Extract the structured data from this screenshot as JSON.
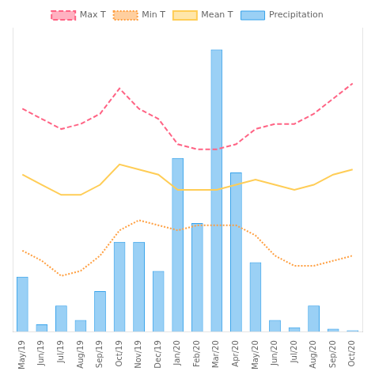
{
  "chart_data": {
    "type": "bar",
    "categories": [
      "May/19",
      "Jun/19",
      "Jul/19",
      "Aug/19",
      "Sep/19",
      "Oct/19",
      "Nov/19",
      "Dec/19",
      "Jan/20",
      "Feb/20",
      "Mar/20",
      "Apr/20",
      "May/20",
      "Jun/20",
      "Jul/20",
      "Aug/20",
      "Sep/20",
      "Oct/20"
    ],
    "series": [
      {
        "name": "Precipitation",
        "type": "bar",
        "values": [
          38,
          5,
          18,
          8,
          28,
          62,
          62,
          42,
          120,
          75,
          195,
          110,
          48,
          8,
          3,
          18,
          2,
          1
        ]
      },
      {
        "name": "Max T",
        "type": "line",
        "axis": "y2",
        "line_style": "dashed",
        "values": [
          32.0,
          31.0,
          30.0,
          30.5,
          31.5,
          34.0,
          32.0,
          31.0,
          28.5,
          28.0,
          28.0,
          28.5,
          30.0,
          30.5,
          30.5,
          31.5,
          33.0,
          34.5
        ]
      },
      {
        "name": "Min T",
        "type": "line",
        "axis": "y2",
        "line_style": "dotted",
        "values": [
          18.0,
          17.0,
          15.5,
          16.0,
          17.5,
          20.0,
          21.0,
          20.5,
          20.0,
          20.5,
          20.5,
          20.5,
          19.5,
          17.5,
          16.5,
          16.5,
          17.0,
          17.5
        ]
      },
      {
        "name": "Mean T",
        "type": "line",
        "axis": "y2",
        "line_style": "solid",
        "values": [
          25.5,
          24.5,
          23.5,
          23.5,
          24.5,
          26.5,
          26.0,
          25.5,
          24.0,
          24.0,
          24.0,
          24.5,
          25.0,
          24.5,
          24.0,
          24.5,
          25.5,
          26.0
        ]
      }
    ],
    "ylim": [
      0,
      210
    ],
    "y2lim": [
      10,
      40
    ],
    "tick_labels": "x",
    "grid": false,
    "legend": "top"
  }
}
